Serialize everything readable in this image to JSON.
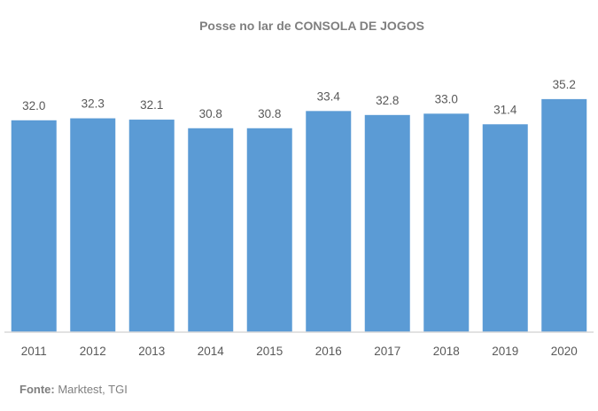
{
  "chart_data": {
    "type": "bar",
    "title": "Posse no lar de CONSOLA DE JOGOS",
    "categories": [
      "2011",
      "2012",
      "2013",
      "2014",
      "2015",
      "2016",
      "2017",
      "2018",
      "2019",
      "2020"
    ],
    "values": [
      32.0,
      32.3,
      32.1,
      30.8,
      30.8,
      33.4,
      32.8,
      33.0,
      31.4,
      35.2
    ],
    "data_labels": [
      "32.0",
      "32.3",
      "32.1",
      "30.8",
      "30.8",
      "33.4",
      "32.8",
      "33.0",
      "31.4",
      "35.2"
    ],
    "xlabel": "",
    "ylabel": "",
    "ylim": [
      0,
      40
    ],
    "grid": false,
    "bar_color": "#5b9bd5",
    "axis_color": "#d9d9d9"
  },
  "source": {
    "label": "Fonte:",
    "text": " Marktest, TGI"
  }
}
